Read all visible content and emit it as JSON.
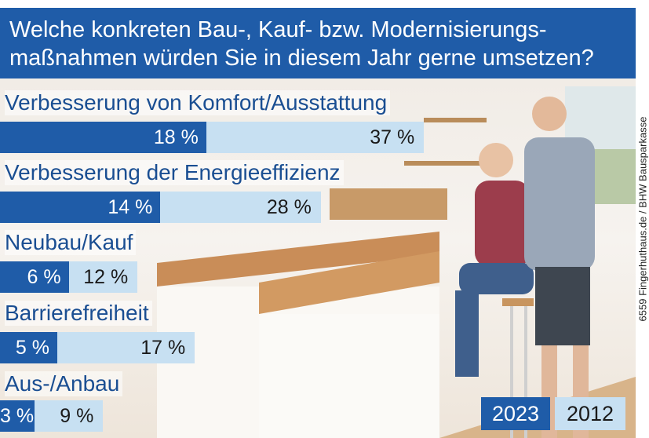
{
  "title_line1": "Welche konkreten Bau-, Kauf- bzw. Modernisierungs-",
  "title_line2": "maßnahmen würden Sie in diesem Jahr gerne umsetzen?",
  "credit": "6559 Fingerhuthaus.de / BHW Bausparkasse",
  "colors": {
    "y2023": "#1f5ca8",
    "y2012": "#c7e0f2",
    "label": "#1a4e92"
  },
  "chart_data": {
    "type": "bar",
    "orientation": "horizontal",
    "stacking": "overlapping",
    "categories": [
      "Verbesserung von Komfort/Ausstattung",
      "Verbesserung der Energieeffizienz",
      "Neubau/Kauf",
      "Barrierefreiheit",
      "Aus-/Anbau"
    ],
    "series": [
      {
        "name": "2023",
        "values": [
          18,
          14,
          6,
          5,
          3
        ],
        "labels": [
          "18 %",
          "14 %",
          "6 %",
          "5 %",
          "3 %"
        ]
      },
      {
        "name": "2012",
        "values": [
          37,
          28,
          12,
          17,
          9
        ],
        "labels": [
          "37 %",
          "28 %",
          "12 %",
          "17 %",
          "9 %"
        ]
      }
    ],
    "unit": "%",
    "legend_placement": "bottom-right",
    "grid": false
  }
}
